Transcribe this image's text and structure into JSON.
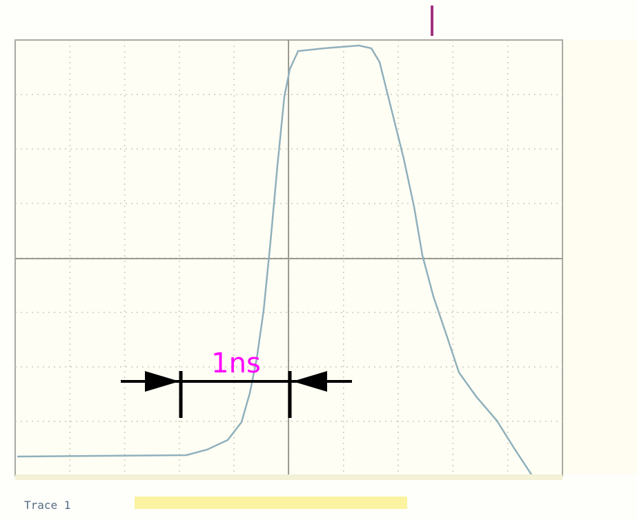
{
  "annotation": {
    "label": "1ns"
  },
  "status": {
    "trace": "Trace 1"
  }
}
